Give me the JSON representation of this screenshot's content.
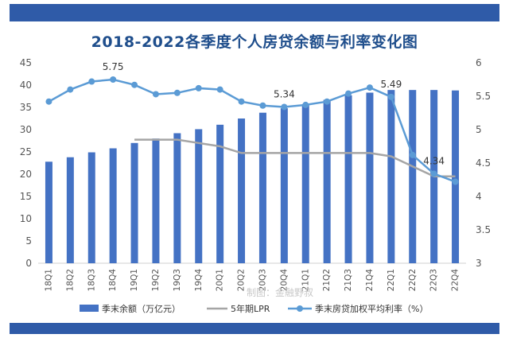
{
  "chart_data": {
    "type": "bar+line",
    "title": "2018-2022各季度个人房贷余额与利率变化图",
    "categories": [
      "18Q1",
      "18Q2",
      "18Q3",
      "18Q4",
      "19Q1",
      "19Q2",
      "19Q3",
      "19Q4",
      "20Q1",
      "20Q2",
      "20Q3",
      "20Q4",
      "21Q1",
      "21Q2",
      "21Q3",
      "21Q4",
      "22Q1",
      "22Q2",
      "22Q3",
      "22Q4"
    ],
    "y_left": {
      "range": [
        0,
        45
      ],
      "ticks": [
        0,
        5,
        10,
        15,
        20,
        25,
        30,
        35,
        40,
        45
      ]
    },
    "y_right": {
      "range": [
        3,
        6
      ],
      "ticks": [
        3,
        3.5,
        4,
        4.5,
        5,
        5.5,
        6
      ]
    },
    "series": [
      {
        "name": "季末余额（万亿元）",
        "type": "bar",
        "axis": "left",
        "values": [
          22.8,
          23.8,
          24.9,
          25.8,
          27.0,
          28.0,
          29.2,
          30.1,
          31.1,
          32.5,
          33.8,
          34.8,
          35.7,
          36.7,
          37.7,
          38.3,
          38.9,
          38.9,
          38.9,
          38.8
        ]
      },
      {
        "name": "5年期LPR",
        "type": "line",
        "axis": "right",
        "values": [
          null,
          null,
          null,
          null,
          4.85,
          4.85,
          4.85,
          4.8,
          4.75,
          4.65,
          4.65,
          4.65,
          4.65,
          4.65,
          4.65,
          4.65,
          4.6,
          4.45,
          4.3,
          4.3
        ]
      },
      {
        "name": "季末房贷加权平均利率（%）",
        "type": "line",
        "axis": "right",
        "values": [
          5.42,
          5.6,
          5.72,
          5.75,
          5.67,
          5.53,
          5.55,
          5.62,
          5.6,
          5.42,
          5.36,
          5.34,
          5.37,
          5.42,
          5.54,
          5.63,
          5.49,
          4.62,
          4.34,
          4.22
        ]
      }
    ],
    "data_labels": [
      {
        "series": 2,
        "index": 3,
        "text": "5.75"
      },
      {
        "series": 2,
        "index": 11,
        "text": "5.34"
      },
      {
        "series": 2,
        "index": 16,
        "text": "5.49"
      },
      {
        "series": 2,
        "index": 18,
        "text": "4.34"
      }
    ],
    "legend": {
      "placement": "bottom"
    },
    "grid": false,
    "colors": {
      "bar": "#4472c4",
      "lpr": "#a5a5a5",
      "rate": "#5b9bd5",
      "band": "#2f5ba8",
      "title": "#1f4e8c"
    }
  },
  "watermark": "制图：金融野叔"
}
